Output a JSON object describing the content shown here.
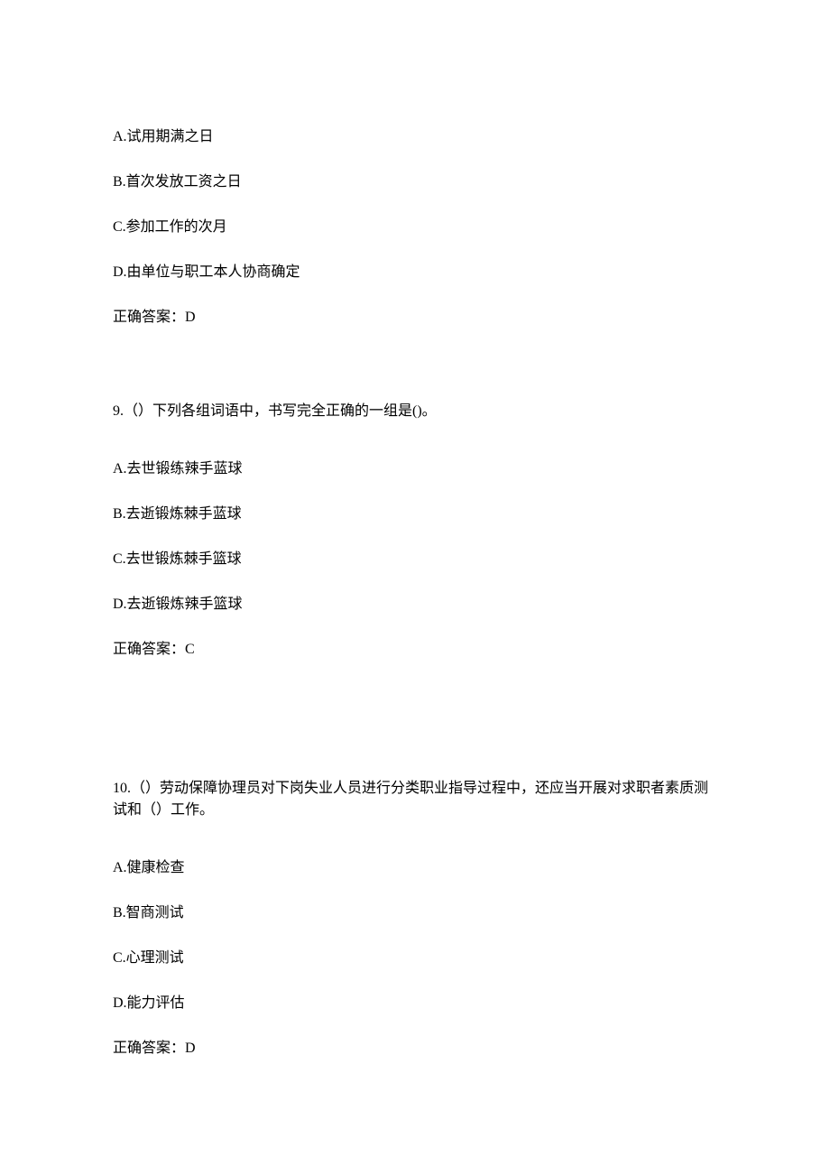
{
  "q8": {
    "optA": "A.试用期满之日",
    "optB": "B.首次发放工资之日",
    "optC": "C.参加工作的次月",
    "optD": "D.由单位与职工本人协商确定",
    "answer": "正确答案：D"
  },
  "q9": {
    "stem": "9.（）下列各组词语中，书写完全正确的一组是()。",
    "optA": "A.去世锻练辣手蓝球",
    "optB": "B.去逝锻炼棘手蓝球",
    "optC": "C.去世锻炼棘手篮球",
    "optD": "D.去逝锻炼辣手篮球",
    "answer": "正确答案：C"
  },
  "q10": {
    "stem": "10.（）劳动保障协理员对下岗失业人员进行分类职业指导过程中，还应当开展对求职者素质测试和（）工作。",
    "optA": "A.健康检查",
    "optB": "B.智商测试",
    "optC": "C.心理测试",
    "optD": "D.能力评估",
    "answer": "正确答案：D"
  }
}
